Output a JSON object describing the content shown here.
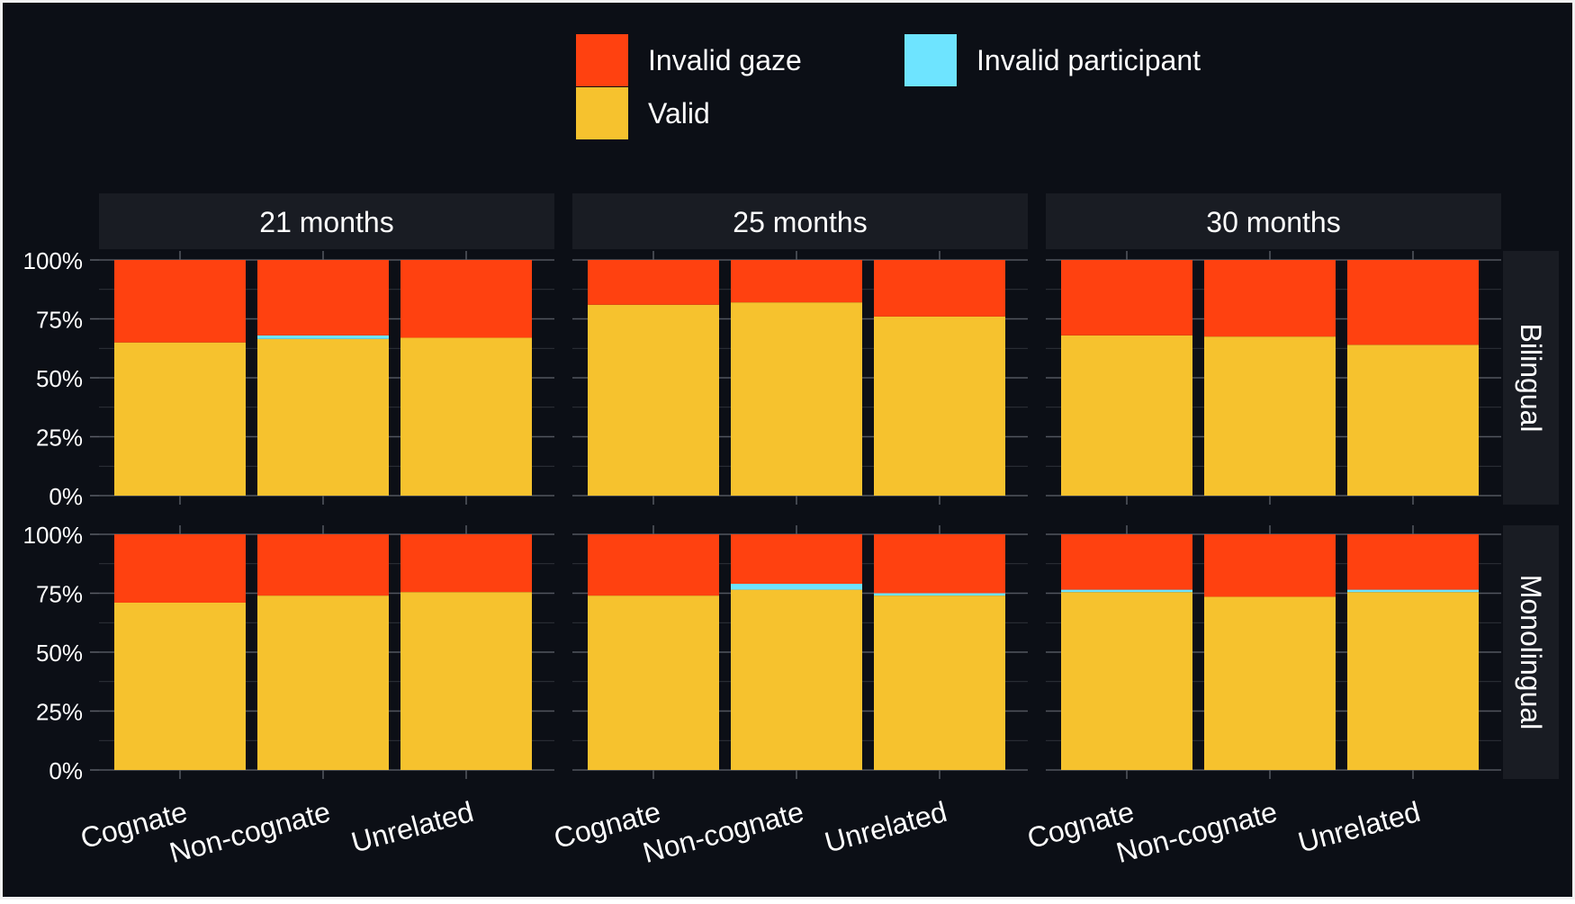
{
  "chart_data": {
    "type": "bar",
    "stacked": true,
    "y_unit": "percent",
    "ylim": [
      0,
      100
    ],
    "y_ticks": [
      "0%",
      "25%",
      "50%",
      "75%",
      "100%"
    ],
    "categories": [
      "Cognate",
      "Non-cognate",
      "Unrelated"
    ],
    "legend": {
      "position": "top",
      "items": [
        {
          "name": "Invalid gaze",
          "color": "#FF4110"
        },
        {
          "name": "Invalid participant",
          "color": "#6EE4FF"
        },
        {
          "name": "Valid",
          "color": "#F6C22E"
        }
      ]
    },
    "facet_columns": [
      "21 months",
      "25 months",
      "30 months"
    ],
    "facet_rows": [
      "Bilingual",
      "Monolingual"
    ],
    "panels": [
      {
        "row": "Bilingual",
        "col": "21 months",
        "series": [
          {
            "name": "Valid",
            "values": [
              65,
              66.5,
              67
            ]
          },
          {
            "name": "Invalid participant",
            "values": [
              0,
              1.5,
              0
            ]
          },
          {
            "name": "Invalid gaze",
            "values": [
              35,
              32,
              33
            ]
          }
        ]
      },
      {
        "row": "Bilingual",
        "col": "25 months",
        "series": [
          {
            "name": "Valid",
            "values": [
              81,
              82,
              76
            ]
          },
          {
            "name": "Invalid participant",
            "values": [
              0,
              0,
              0
            ]
          },
          {
            "name": "Invalid gaze",
            "values": [
              19,
              18,
              24
            ]
          }
        ]
      },
      {
        "row": "Bilingual",
        "col": "30 months",
        "series": [
          {
            "name": "Valid",
            "values": [
              68,
              67.5,
              64
            ]
          },
          {
            "name": "Invalid participant",
            "values": [
              0,
              0,
              0
            ]
          },
          {
            "name": "Invalid gaze",
            "values": [
              32,
              32.5,
              36
            ]
          }
        ]
      },
      {
        "row": "Monolingual",
        "col": "21 months",
        "series": [
          {
            "name": "Valid",
            "values": [
              71,
              74,
              75.5
            ]
          },
          {
            "name": "Invalid participant",
            "values": [
              0,
              0,
              0
            ]
          },
          {
            "name": "Invalid gaze",
            "values": [
              29,
              26,
              24.5
            ]
          }
        ]
      },
      {
        "row": "Monolingual",
        "col": "25 months",
        "series": [
          {
            "name": "Valid",
            "values": [
              74,
              76.5,
              74
            ]
          },
          {
            "name": "Invalid participant",
            "values": [
              0,
              2.5,
              1
            ]
          },
          {
            "name": "Invalid gaze",
            "values": [
              26,
              21,
              25
            ]
          }
        ]
      },
      {
        "row": "Monolingual",
        "col": "30 months",
        "series": [
          {
            "name": "Valid",
            "values": [
              75.5,
              73.5,
              75.5
            ]
          },
          {
            "name": "Invalid participant",
            "values": [
              1,
              0,
              1
            ]
          },
          {
            "name": "Invalid gaze",
            "values": [
              23.5,
              26.5,
              23.5
            ]
          }
        ]
      }
    ],
    "colors": {
      "background": "#0C0F16",
      "strip": "#191C23",
      "text": "#FFFFFF",
      "grid": "#5A5E66"
    }
  }
}
